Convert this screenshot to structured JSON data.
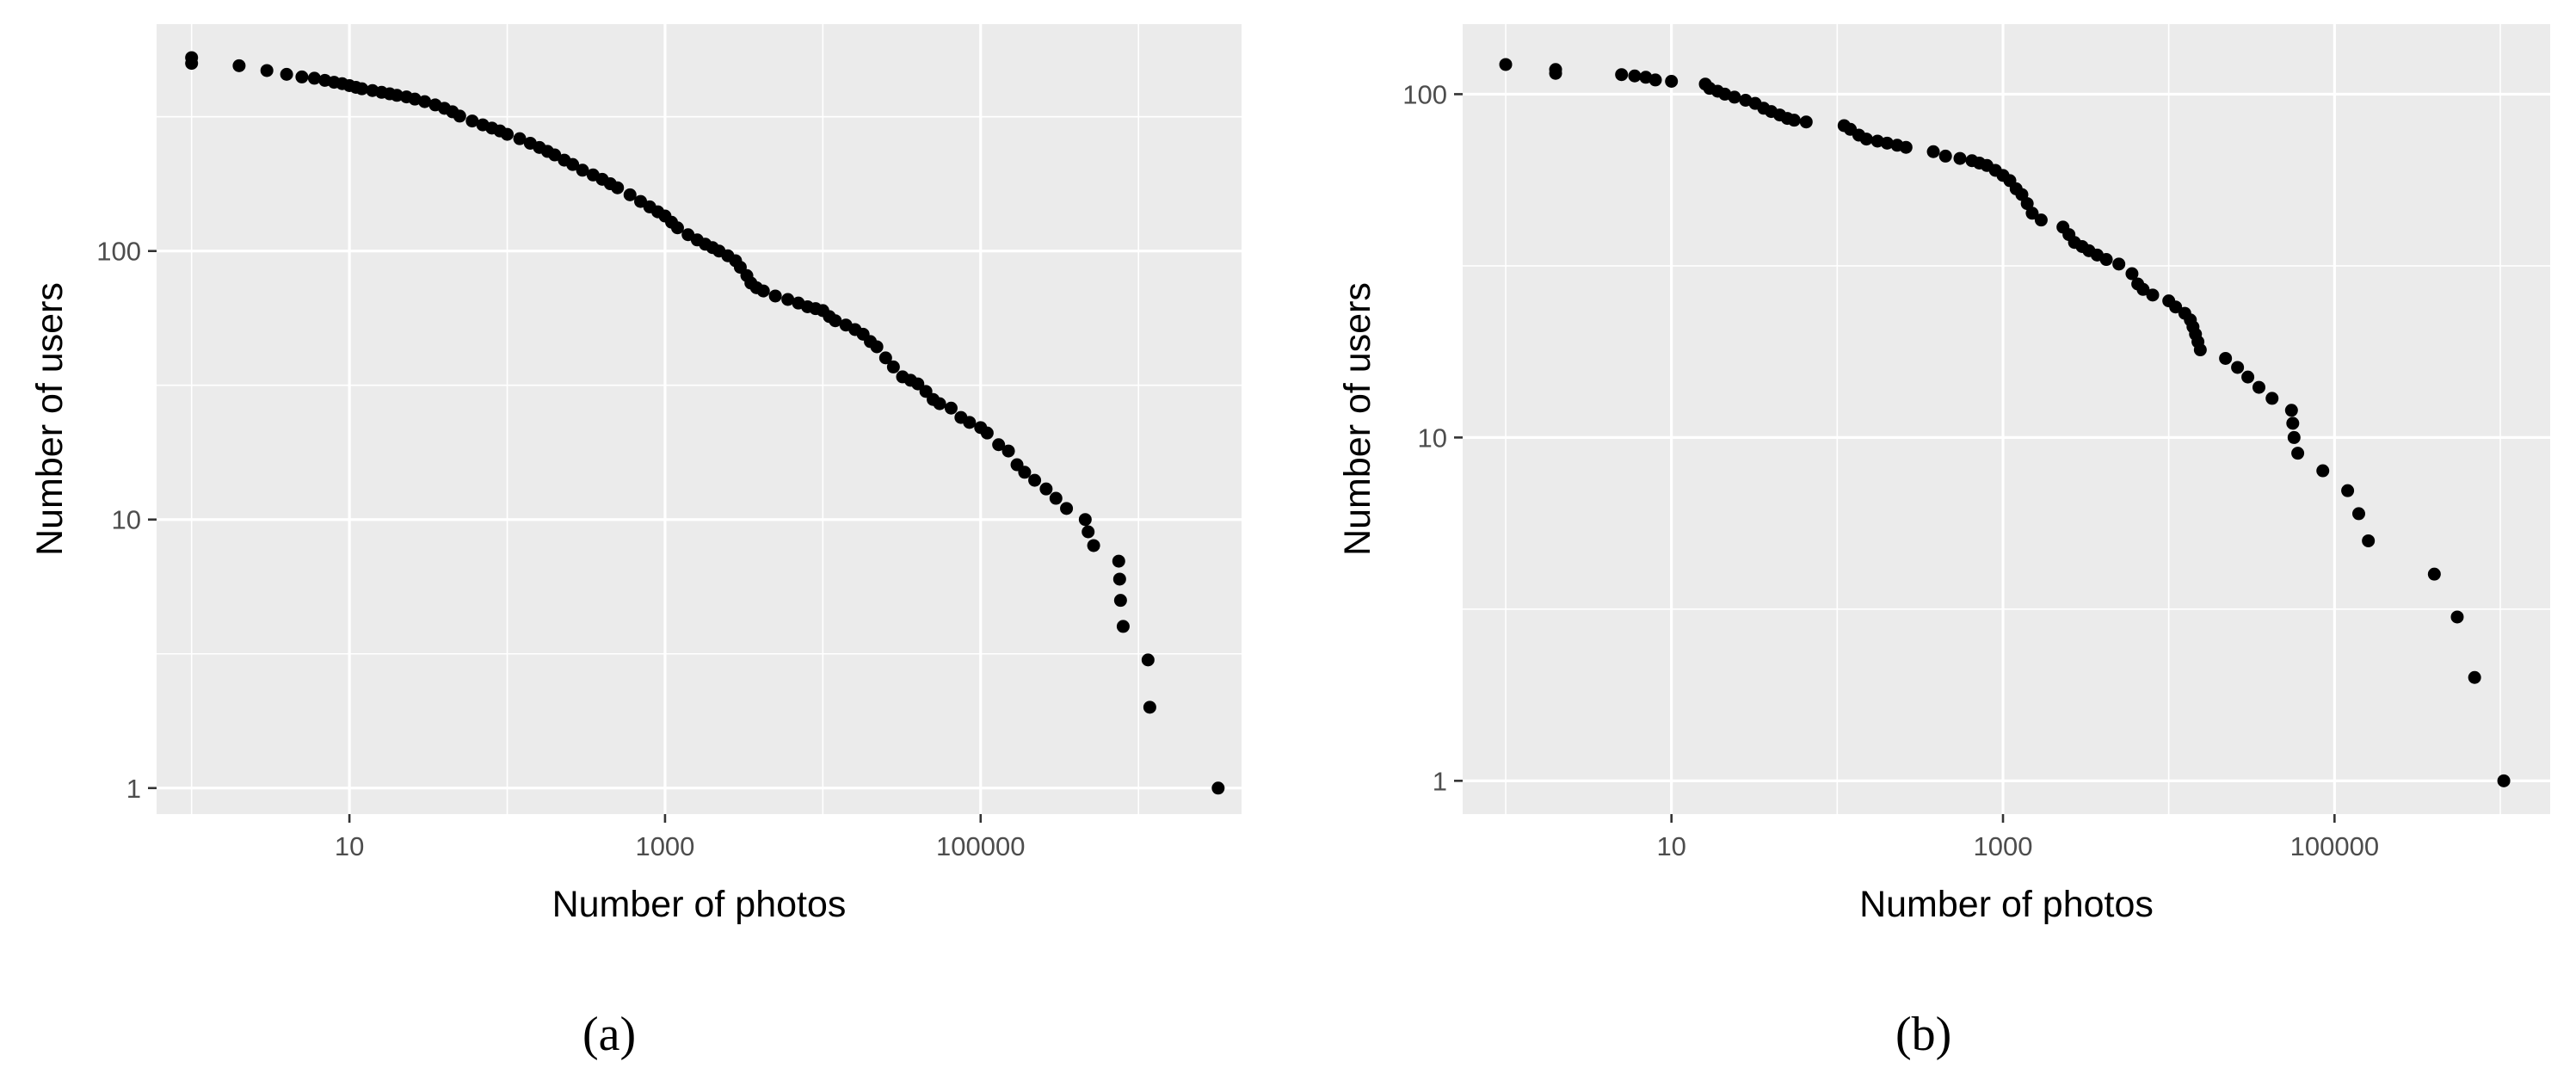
{
  "chart_data": [
    {
      "type": "scatter",
      "caption": "(a)",
      "xlabel": "Number of photos",
      "ylabel": "Number of users",
      "x_scale": "log10",
      "y_scale": "log10",
      "xlim": [
        0.6,
        4500000
      ],
      "ylim": [
        0.8,
        700
      ],
      "x_ticks": [
        10,
        1000,
        100000
      ],
      "x_tick_labels": [
        "10",
        "1000",
        "100000"
      ],
      "y_ticks": [
        1,
        10,
        100
      ],
      "y_tick_labels": [
        "1",
        "10",
        "100"
      ],
      "grid": true,
      "points": [
        {
          "x": 1,
          "y": 525
        },
        {
          "x": 1,
          "y": 500
        },
        {
          "x": 2,
          "y": 490
        },
        {
          "x": 3,
          "y": 470
        },
        {
          "x": 4,
          "y": 455
        },
        {
          "x": 5,
          "y": 445
        },
        {
          "x": 6,
          "y": 440
        },
        {
          "x": 7,
          "y": 432
        },
        {
          "x": 8,
          "y": 425
        },
        {
          "x": 9,
          "y": 420
        },
        {
          "x": 10,
          "y": 413
        },
        {
          "x": 11,
          "y": 407
        },
        {
          "x": 12,
          "y": 402
        },
        {
          "x": 14,
          "y": 396
        },
        {
          "x": 16,
          "y": 390
        },
        {
          "x": 18,
          "y": 385
        },
        {
          "x": 20,
          "y": 380
        },
        {
          "x": 23,
          "y": 375
        },
        {
          "x": 26,
          "y": 368
        },
        {
          "x": 30,
          "y": 360
        },
        {
          "x": 35,
          "y": 350
        },
        {
          "x": 40,
          "y": 340
        },
        {
          "x": 45,
          "y": 330
        },
        {
          "x": 50,
          "y": 318
        },
        {
          "x": 60,
          "y": 305
        },
        {
          "x": 70,
          "y": 295
        },
        {
          "x": 80,
          "y": 287
        },
        {
          "x": 90,
          "y": 280
        },
        {
          "x": 100,
          "y": 272
        },
        {
          "x": 120,
          "y": 262
        },
        {
          "x": 140,
          "y": 252
        },
        {
          "x": 160,
          "y": 243
        },
        {
          "x": 180,
          "y": 235
        },
        {
          "x": 200,
          "y": 228
        },
        {
          "x": 230,
          "y": 218
        },
        {
          "x": 260,
          "y": 210
        },
        {
          "x": 300,
          "y": 200
        },
        {
          "x": 350,
          "y": 192
        },
        {
          "x": 400,
          "y": 185
        },
        {
          "x": 450,
          "y": 178
        },
        {
          "x": 500,
          "y": 172
        },
        {
          "x": 600,
          "y": 162
        },
        {
          "x": 700,
          "y": 153
        },
        {
          "x": 800,
          "y": 146
        },
        {
          "x": 900,
          "y": 140
        },
        {
          "x": 1000,
          "y": 135
        },
        {
          "x": 1100,
          "y": 128
        },
        {
          "x": 1200,
          "y": 122
        },
        {
          "x": 1400,
          "y": 115
        },
        {
          "x": 1600,
          "y": 110
        },
        {
          "x": 1800,
          "y": 106
        },
        {
          "x": 2000,
          "y": 103
        },
        {
          "x": 2200,
          "y": 100
        },
        {
          "x": 2500,
          "y": 96
        },
        {
          "x": 2800,
          "y": 92
        },
        {
          "x": 3000,
          "y": 87
        },
        {
          "x": 3300,
          "y": 81
        },
        {
          "x": 3500,
          "y": 76
        },
        {
          "x": 3800,
          "y": 73
        },
        {
          "x": 4200,
          "y": 71
        },
        {
          "x": 5000,
          "y": 68
        },
        {
          "x": 6000,
          "y": 66
        },
        {
          "x": 7000,
          "y": 64
        },
        {
          "x": 8000,
          "y": 62
        },
        {
          "x": 9000,
          "y": 61
        },
        {
          "x": 10000,
          "y": 60
        },
        {
          "x": 11000,
          "y": 57
        },
        {
          "x": 12000,
          "y": 55
        },
        {
          "x": 14000,
          "y": 53
        },
        {
          "x": 16000,
          "y": 51
        },
        {
          "x": 18000,
          "y": 49
        },
        {
          "x": 20000,
          "y": 46
        },
        {
          "x": 22000,
          "y": 44
        },
        {
          "x": 25000,
          "y": 40
        },
        {
          "x": 28000,
          "y": 37
        },
        {
          "x": 32000,
          "y": 34
        },
        {
          "x": 36000,
          "y": 33
        },
        {
          "x": 40000,
          "y": 32
        },
        {
          "x": 45000,
          "y": 30
        },
        {
          "x": 50000,
          "y": 28
        },
        {
          "x": 55000,
          "y": 27
        },
        {
          "x": 65000,
          "y": 26
        },
        {
          "x": 75000,
          "y": 24
        },
        {
          "x": 85000,
          "y": 23
        },
        {
          "x": 100000,
          "y": 22
        },
        {
          "x": 110000,
          "y": 21
        },
        {
          "x": 130000,
          "y": 19
        },
        {
          "x": 150000,
          "y": 18
        },
        {
          "x": 170000,
          "y": 16
        },
        {
          "x": 190000,
          "y": 15
        },
        {
          "x": 220000,
          "y": 14
        },
        {
          "x": 260000,
          "y": 13
        },
        {
          "x": 300000,
          "y": 12
        },
        {
          "x": 350000,
          "y": 11
        },
        {
          "x": 460000,
          "y": 10
        },
        {
          "x": 480000,
          "y": 9
        },
        {
          "x": 520000,
          "y": 8
        },
        {
          "x": 750000,
          "y": 7
        },
        {
          "x": 760000,
          "y": 6
        },
        {
          "x": 770000,
          "y": 5
        },
        {
          "x": 800000,
          "y": 4
        },
        {
          "x": 1150000,
          "y": 3
        },
        {
          "x": 1180000,
          "y": 2
        },
        {
          "x": 3200000,
          "y": 1
        }
      ]
    },
    {
      "type": "scatter",
      "caption": "(b)",
      "xlabel": "Number of photos",
      "ylabel": "Number of users",
      "x_scale": "log10",
      "y_scale": "log10",
      "xlim": [
        0.55,
        2000000
      ],
      "ylim": [
        0.8,
        160
      ],
      "x_ticks": [
        10,
        1000,
        100000
      ],
      "x_tick_labels": [
        "10",
        "1000",
        "100000"
      ],
      "y_ticks": [
        1,
        10,
        100
      ],
      "y_tick_labels": [
        "1",
        "10",
        "100"
      ],
      "grid": true,
      "points": [
        {
          "x": 1,
          "y": 122
        },
        {
          "x": 2,
          "y": 118
        },
        {
          "x": 2,
          "y": 115
        },
        {
          "x": 5,
          "y": 114
        },
        {
          "x": 6,
          "y": 113
        },
        {
          "x": 7,
          "y": 112
        },
        {
          "x": 8,
          "y": 110
        },
        {
          "x": 10,
          "y": 109
        },
        {
          "x": 16,
          "y": 107
        },
        {
          "x": 17,
          "y": 104
        },
        {
          "x": 19,
          "y": 102
        },
        {
          "x": 21,
          "y": 100
        },
        {
          "x": 24,
          "y": 98
        },
        {
          "x": 28,
          "y": 96
        },
        {
          "x": 32,
          "y": 94
        },
        {
          "x": 36,
          "y": 91
        },
        {
          "x": 40,
          "y": 89
        },
        {
          "x": 45,
          "y": 87
        },
        {
          "x": 50,
          "y": 85
        },
        {
          "x": 55,
          "y": 84
        },
        {
          "x": 65,
          "y": 83
        },
        {
          "x": 110,
          "y": 81
        },
        {
          "x": 120,
          "y": 79
        },
        {
          "x": 135,
          "y": 76
        },
        {
          "x": 150,
          "y": 74
        },
        {
          "x": 175,
          "y": 73
        },
        {
          "x": 200,
          "y": 72
        },
        {
          "x": 230,
          "y": 71
        },
        {
          "x": 260,
          "y": 70
        },
        {
          "x": 380,
          "y": 68
        },
        {
          "x": 450,
          "y": 66
        },
        {
          "x": 550,
          "y": 65
        },
        {
          "x": 650,
          "y": 64
        },
        {
          "x": 720,
          "y": 63
        },
        {
          "x": 800,
          "y": 62
        },
        {
          "x": 900,
          "y": 60
        },
        {
          "x": 1000,
          "y": 58
        },
        {
          "x": 1100,
          "y": 56
        },
        {
          "x": 1200,
          "y": 53
        },
        {
          "x": 1300,
          "y": 51
        },
        {
          "x": 1400,
          "y": 48
        },
        {
          "x": 1500,
          "y": 45
        },
        {
          "x": 1700,
          "y": 43
        },
        {
          "x": 2300,
          "y": 41
        },
        {
          "x": 2500,
          "y": 39
        },
        {
          "x": 2700,
          "y": 37
        },
        {
          "x": 3000,
          "y": 36
        },
        {
          "x": 3300,
          "y": 35
        },
        {
          "x": 3700,
          "y": 34
        },
        {
          "x": 4200,
          "y": 33
        },
        {
          "x": 5000,
          "y": 32
        },
        {
          "x": 6000,
          "y": 30
        },
        {
          "x": 6500,
          "y": 28
        },
        {
          "x": 7000,
          "y": 27
        },
        {
          "x": 8000,
          "y": 26
        },
        {
          "x": 10000,
          "y": 25
        },
        {
          "x": 11000,
          "y": 24
        },
        {
          "x": 12500,
          "y": 23
        },
        {
          "x": 13500,
          "y": 22
        },
        {
          "x": 14000,
          "y": 21
        },
        {
          "x": 14500,
          "y": 20
        },
        {
          "x": 15000,
          "y": 19
        },
        {
          "x": 15500,
          "y": 18
        },
        {
          "x": 22000,
          "y": 17
        },
        {
          "x": 26000,
          "y": 16
        },
        {
          "x": 30000,
          "y": 15
        },
        {
          "x": 35000,
          "y": 14
        },
        {
          "x": 42000,
          "y": 13
        },
        {
          "x": 55000,
          "y": 12
        },
        {
          "x": 56000,
          "y": 11
        },
        {
          "x": 57000,
          "y": 10
        },
        {
          "x": 60000,
          "y": 9
        },
        {
          "x": 85000,
          "y": 8
        },
        {
          "x": 120000,
          "y": 7
        },
        {
          "x": 140000,
          "y": 6
        },
        {
          "x": 160000,
          "y": 5
        },
        {
          "x": 400000,
          "y": 4
        },
        {
          "x": 550000,
          "y": 3
        },
        {
          "x": 700000,
          "y": 2
        },
        {
          "x": 1050000,
          "y": 1
        }
      ]
    }
  ]
}
